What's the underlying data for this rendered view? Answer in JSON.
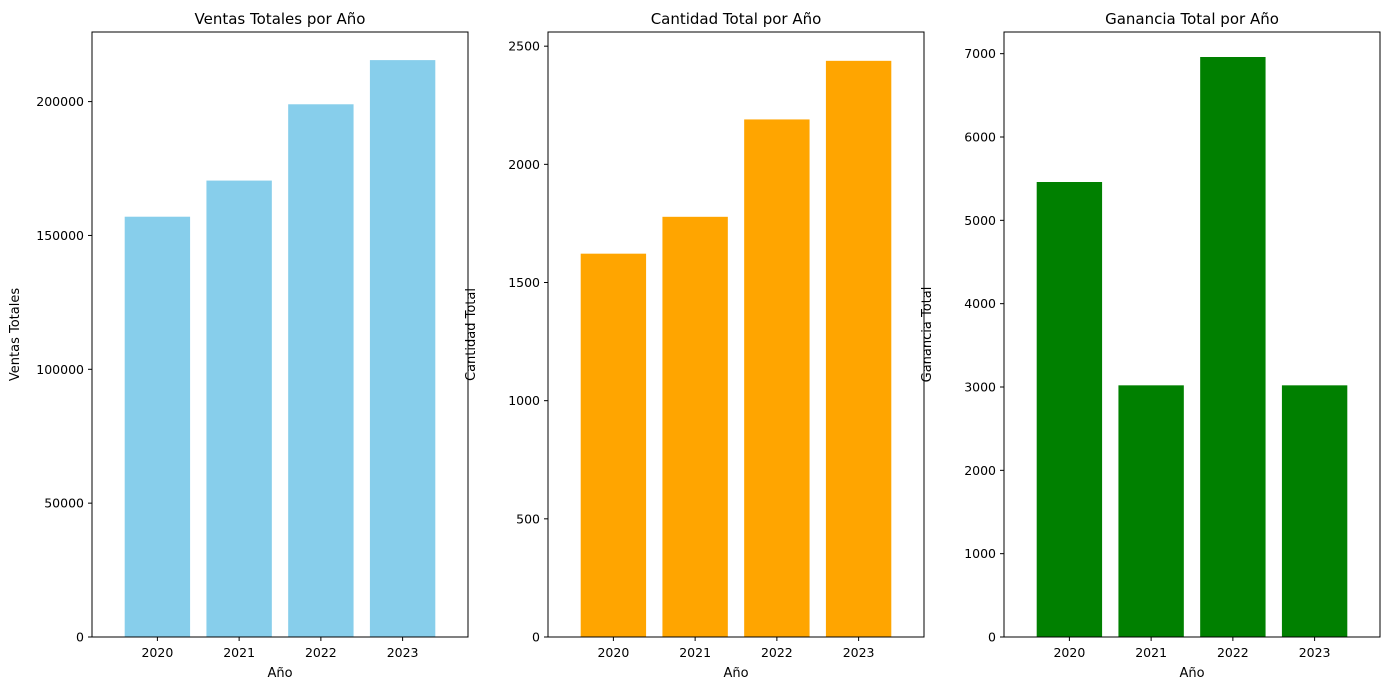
{
  "chart_data": [
    {
      "type": "bar",
      "title": "Ventas Totales por Año",
      "xlabel": "Año",
      "ylabel": "Ventas Totales",
      "categories": [
        "2020",
        "2021",
        "2022",
        "2023"
      ],
      "values": [
        157000,
        170500,
        199000,
        215500
      ],
      "ylim": [
        0,
        226000
      ],
      "yticks": [
        0,
        50000,
        100000,
        150000,
        200000
      ],
      "color": "#87ceeb",
      "grid": false
    },
    {
      "type": "bar",
      "title": "Cantidad Total por Año",
      "xlabel": "Año",
      "ylabel": "Cantidad Total",
      "categories": [
        "2020",
        "2021",
        "2022",
        "2023"
      ],
      "values": [
        1622,
        1778,
        2190,
        2438
      ],
      "ylim": [
        0,
        2560
      ],
      "yticks": [
        0,
        500,
        1000,
        1500,
        2000,
        2500
      ],
      "color": "#ffa500",
      "grid": false
    },
    {
      "type": "bar",
      "title": "Ganancia Total por Año",
      "xlabel": "Año",
      "ylabel": "Ganancia Total",
      "categories": [
        "2020",
        "2021",
        "2022",
        "2023"
      ],
      "values": [
        5460,
        3020,
        6960,
        3020
      ],
      "ylim": [
        0,
        7260
      ],
      "yticks": [
        0,
        1000,
        2000,
        3000,
        4000,
        5000,
        6000,
        7000
      ],
      "color": "#008000",
      "grid": false
    }
  ]
}
